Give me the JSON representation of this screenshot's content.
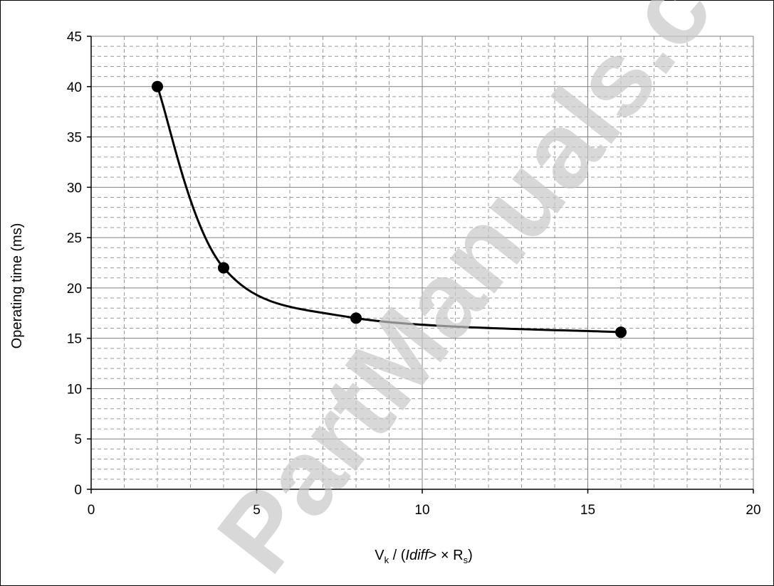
{
  "chart_data": {
    "type": "line",
    "title": "",
    "xlabel": "",
    "ylabel": "Operating time (ms)",
    "xlabel_parts": {
      "v": "V",
      "v_sub": "k",
      "mid": " / (",
      "idiff": "Idiff",
      "gt": ">",
      "times": " × R",
      "r_sub": "s",
      "close": ")"
    },
    "xlim": [
      0,
      20
    ],
    "ylim": [
      0,
      45
    ],
    "x_ticks": [
      "0",
      "5",
      "10",
      "15",
      "20"
    ],
    "y_ticks": [
      "0",
      "5",
      "10",
      "15",
      "20",
      "25",
      "30",
      "35",
      "40",
      "45"
    ],
    "grid": "major solid, minor dashed",
    "legend": "none",
    "series": [
      {
        "x": [
          2,
          4,
          8,
          16
        ],
        "y": [
          40,
          22,
          17,
          15.6
        ]
      }
    ],
    "colors": {
      "line": "#000000",
      "marker": "#000000",
      "grid": "#808080"
    }
  },
  "watermark": {
    "text": "PartManuals.c"
  }
}
